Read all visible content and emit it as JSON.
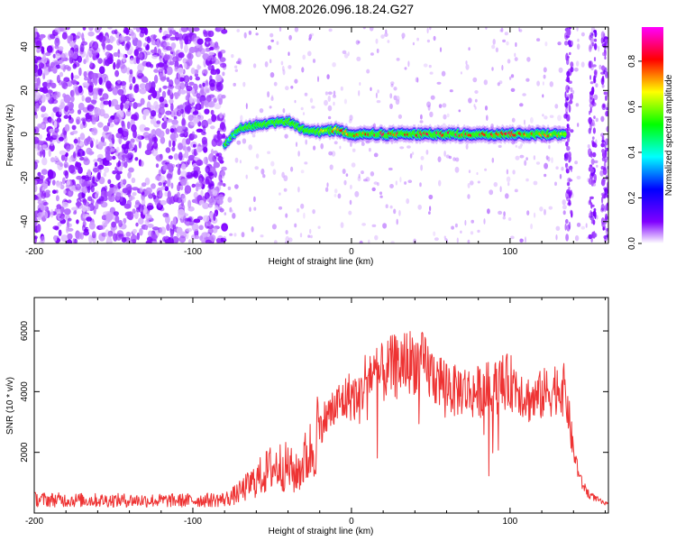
{
  "title": "YM08.2026.096.18.24.G27",
  "chart_data": [
    {
      "type": "heatmap",
      "xlabel": "Height of straight line (km)",
      "ylabel": "Frequency (Hz)",
      "xlim": [
        -200,
        162
      ],
      "ylim": [
        -50,
        49
      ],
      "xticks": [
        -200,
        -100,
        0,
        100
      ],
      "yticks": [
        -40,
        -20,
        0,
        20,
        40
      ],
      "colorbar": {
        "label": "Normalized spectral amplitude",
        "range": [
          0,
          0.95
        ],
        "ticks": [
          0.0,
          0.2,
          0.4,
          0.6,
          0.8
        ],
        "tick_labels": [
          "0.0",
          "0.2",
          "0.4",
          "0.6",
          "0.8"
        ],
        "colors": [
          "#ffffff",
          "#8000ff",
          "#0000ff",
          "#00ffff",
          "#00ff00",
          "#ffff00",
          "#ff0000",
          "#ff00ff"
        ]
      },
      "noise_region": {
        "x": [
          -200,
          -80
        ],
        "level": 0.1
      },
      "ridge": {
        "x": [
          -80,
          -70,
          -60,
          -50,
          -40,
          -30,
          -20,
          -10,
          0,
          20,
          40,
          60,
          80,
          100,
          120,
          135
        ],
        "freq": [
          -5,
          3,
          4,
          5,
          6,
          2,
          1,
          2,
          0,
          0,
          0,
          0,
          0,
          0,
          0,
          0
        ],
        "amplitude": [
          0.35,
          0.5,
          0.55,
          0.55,
          0.6,
          0.55,
          0.7,
          0.8,
          0.85,
          0.9,
          0.9,
          0.9,
          0.9,
          0.9,
          0.85,
          0.7
        ]
      },
      "broadband_spikes": [
        137,
        152,
        160
      ]
    },
    {
      "type": "line",
      "xlabel": "Height of straight line (km)",
      "ylabel": "SNR (10 * v/v)",
      "xlim": [
        -200,
        162
      ],
      "ylim": [
        0,
        7100
      ],
      "xticks": [
        -200,
        -100,
        0,
        100
      ],
      "yticks": [
        2000,
        4000,
        6000
      ],
      "color": "#ee3333",
      "series": [
        {
          "name": "SNR",
          "x": [
            -200,
            -180,
            -160,
            -140,
            -120,
            -100,
            -90,
            -80,
            -75,
            -70,
            -65,
            -60,
            -55,
            -50,
            -45,
            -40,
            -35,
            -30,
            -25,
            -20,
            -15,
            -10,
            -5,
            0,
            5,
            10,
            15,
            20,
            25,
            30,
            35,
            40,
            45,
            50,
            55,
            60,
            65,
            70,
            75,
            80,
            85,
            90,
            95,
            100,
            105,
            110,
            115,
            120,
            125,
            130,
            135,
            140,
            145,
            150,
            155,
            160
          ],
          "y": [
            450,
            430,
            420,
            420,
            410,
            420,
            430,
            450,
            550,
            700,
            900,
            1100,
            1300,
            1500,
            1550,
            1500,
            1250,
            1700,
            2100,
            2900,
            3200,
            3500,
            3700,
            3900,
            3700,
            4700,
            4500,
            4600,
            4800,
            4900,
            5000,
            5000,
            4900,
            4600,
            4400,
            4300,
            4000,
            4100,
            3950,
            4000,
            4100,
            4100,
            4300,
            4300,
            4200,
            3800,
            3700,
            3900,
            4000,
            4200,
            4000,
            2000,
            1000,
            600,
            450,
            300
          ]
        }
      ]
    }
  ]
}
